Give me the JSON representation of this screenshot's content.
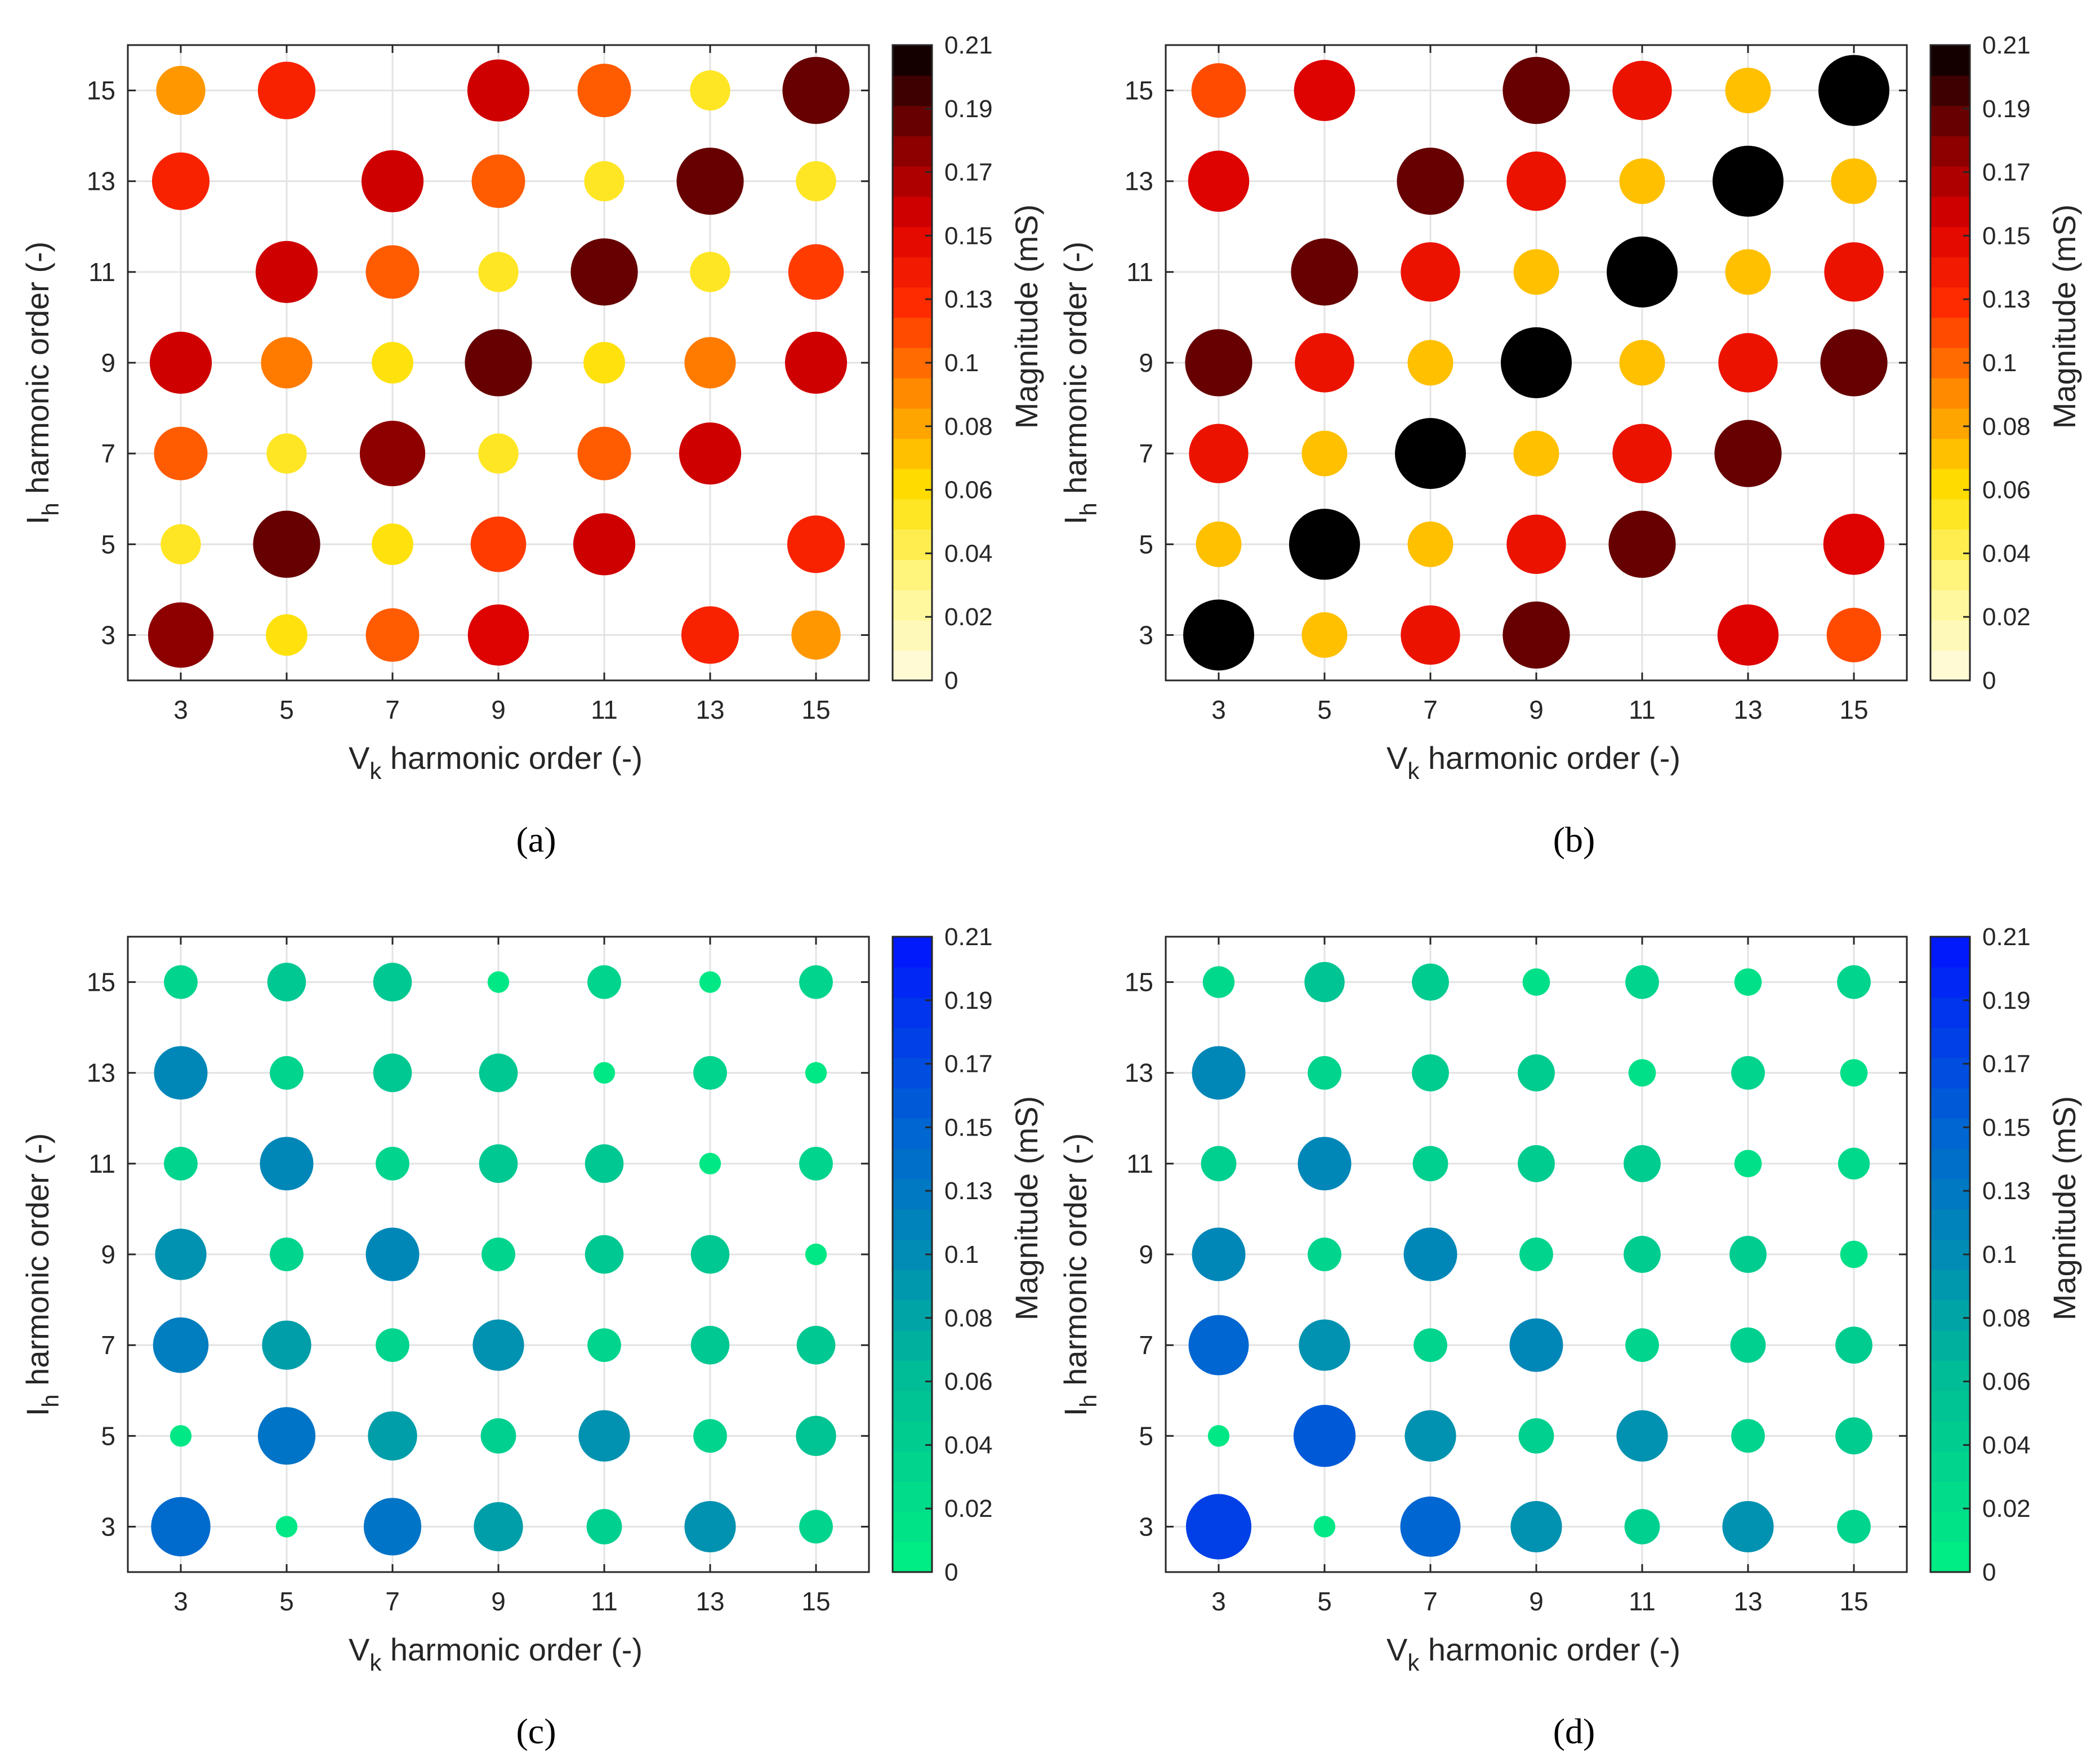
{
  "chart_data": [
    {
      "type": "scatter",
      "panel": "a",
      "caption": "(a)",
      "colormap": "hot",
      "xlabel": {
        "main": "V",
        "sub": "k",
        "rest": " harmonic order (-)"
      },
      "ylabel": {
        "main": "I",
        "sub": "h",
        "rest": " harmonic order (-)"
      },
      "x_ticks": [
        3,
        5,
        7,
        9,
        11,
        13,
        15
      ],
      "y_ticks": [
        3,
        5,
        7,
        9,
        11,
        13,
        15
      ],
      "xlim": [
        2,
        16
      ],
      "ylim": [
        2,
        16
      ],
      "colorbar": {
        "label": "Magnitude (mS)",
        "range": [
          0,
          0.21
        ],
        "ticks": [
          "0",
          "0.02",
          "0.04",
          "0.06",
          "0.08",
          "0.1",
          "0.13",
          "0.15",
          "0.17",
          "0.19",
          "0.21"
        ]
      },
      "rows_y": [
        3,
        5,
        7,
        9,
        11,
        13,
        15
      ],
      "columns_x": [
        3,
        5,
        7,
        9,
        11,
        13,
        15
      ],
      "values": [
        [
          0.175,
          0.06,
          0.11,
          0.15,
          null,
          0.13,
          0.09
        ],
        [
          0.055,
          0.185,
          0.06,
          0.12,
          0.155,
          null,
          0.13
        ],
        [
          0.11,
          0.055,
          0.175,
          0.055,
          0.11,
          0.155,
          null
        ],
        [
          0.155,
          0.1,
          0.06,
          0.185,
          0.06,
          0.1,
          0.155
        ],
        [
          null,
          0.155,
          0.11,
          0.055,
          0.185,
          0.055,
          0.12
        ],
        [
          0.13,
          null,
          0.155,
          0.11,
          0.055,
          0.185,
          0.055
        ],
        [
          0.09,
          0.13,
          null,
          0.155,
          0.11,
          0.055,
          0.185
        ]
      ]
    },
    {
      "type": "scatter",
      "panel": "b",
      "caption": "(b)",
      "colormap": "hot",
      "xlabel": {
        "main": "V",
        "sub": "k",
        "rest": " harmonic order (-)"
      },
      "ylabel": {
        "main": "I",
        "sub": "h",
        "rest": " harmonic order (-)"
      },
      "x_ticks": [
        3,
        5,
        7,
        9,
        11,
        13,
        15
      ],
      "y_ticks": [
        3,
        5,
        7,
        9,
        11,
        13,
        15
      ],
      "xlim": [
        2,
        16
      ],
      "ylim": [
        2,
        16
      ],
      "colorbar": {
        "label": "Magnitude (mS)",
        "range": [
          0,
          0.21
        ],
        "ticks": [
          "0",
          "0.02",
          "0.04",
          "0.06",
          "0.08",
          "0.1",
          "0.13",
          "0.15",
          "0.17",
          "0.19",
          "0.21"
        ]
      },
      "rows_y": [
        3,
        5,
        7,
        9,
        11,
        13,
        15
      ],
      "columns_x": [
        3,
        5,
        7,
        9,
        11,
        13,
        15
      ],
      "values": [
        [
          0.21,
          0.075,
          0.14,
          0.185,
          null,
          0.15,
          0.115
        ],
        [
          0.075,
          0.21,
          0.075,
          0.14,
          0.185,
          null,
          0.15
        ],
        [
          0.14,
          0.075,
          0.21,
          0.075,
          0.14,
          0.185,
          null
        ],
        [
          0.185,
          0.14,
          0.075,
          0.21,
          0.075,
          0.14,
          0.185
        ],
        [
          null,
          0.185,
          0.14,
          0.075,
          0.21,
          0.075,
          0.14
        ],
        [
          0.15,
          null,
          0.185,
          0.14,
          0.075,
          0.21,
          0.075
        ],
        [
          0.115,
          0.15,
          null,
          0.185,
          0.14,
          0.075,
          0.21
        ]
      ]
    },
    {
      "type": "scatter",
      "panel": "c",
      "caption": "(c)",
      "colormap": "winter",
      "xlabel": {
        "main": "V",
        "sub": "k",
        "rest": " harmonic order (-)"
      },
      "ylabel": {
        "main": "I",
        "sub": "h",
        "rest": " harmonic order (-)"
      },
      "x_ticks": [
        3,
        5,
        7,
        9,
        11,
        13,
        15
      ],
      "y_ticks": [
        3,
        5,
        7,
        9,
        11,
        13,
        15
      ],
      "xlim": [
        2,
        16
      ],
      "ylim": [
        2,
        16
      ],
      "colorbar": {
        "label": "Magnitude (mS)",
        "range": [
          0,
          0.21
        ],
        "ticks": [
          "0",
          "0.02",
          "0.04",
          "0.06",
          "0.08",
          "0.1",
          "0.13",
          "0.15",
          "0.17",
          "0.19",
          "0.21"
        ]
      },
      "rows_y": [
        3,
        5,
        7,
        9,
        11,
        13,
        15
      ],
      "columns_x": [
        3,
        5,
        7,
        9,
        11,
        13,
        15
      ],
      "values": [
        [
          0.14,
          0.01,
          0.13,
          0.09,
          0.04,
          0.1,
          0.035
        ],
        [
          0.01,
          0.13,
          0.09,
          0.04,
          0.1,
          0.035,
          0.055
        ],
        [
          0.12,
          0.09,
          0.035,
          0.1,
          0.035,
          0.05,
          0.05
        ],
        [
          0.1,
          0.035,
          0.11,
          0.035,
          0.05,
          0.05,
          0.01
        ],
        [
          0.035,
          0.11,
          0.035,
          0.05,
          0.05,
          0.01,
          0.035
        ],
        [
          0.11,
          0.035,
          0.05,
          0.05,
          0.01,
          0.035,
          0.01
        ],
        [
          0.035,
          0.05,
          0.05,
          0.01,
          0.035,
          0.01,
          0.035
        ]
      ]
    },
    {
      "type": "scatter",
      "panel": "d",
      "caption": "(d)",
      "colormap": "winter",
      "xlabel": {
        "main": "V",
        "sub": "k",
        "rest": " harmonic order (-)"
      },
      "ylabel": {
        "main": "I",
        "sub": "h",
        "rest": " harmonic order (-)"
      },
      "x_ticks": [
        3,
        5,
        7,
        9,
        11,
        13,
        15
      ],
      "y_ticks": [
        3,
        5,
        7,
        9,
        11,
        13,
        15
      ],
      "xlim": [
        2,
        16
      ],
      "ylim": [
        2,
        16
      ],
      "colorbar": {
        "label": "Magnitude (mS)",
        "range": [
          0,
          0.21
        ],
        "ticks": [
          "0",
          "0.02",
          "0.04",
          "0.06",
          "0.08",
          "0.1",
          "0.13",
          "0.15",
          "0.17",
          "0.19",
          "0.21"
        ]
      },
      "rows_y": [
        3,
        5,
        7,
        9,
        11,
        13,
        15
      ],
      "columns_x": [
        3,
        5,
        7,
        9,
        11,
        13,
        15
      ],
      "values": [
        [
          0.175,
          0.01,
          0.145,
          0.1,
          0.04,
          0.1,
          0.035
        ],
        [
          0.01,
          0.155,
          0.1,
          0.04,
          0.1,
          0.035,
          0.045
        ],
        [
          0.145,
          0.1,
          0.035,
          0.11,
          0.035,
          0.04,
          0.045
        ],
        [
          0.11,
          0.035,
          0.11,
          0.035,
          0.045,
          0.045,
          0.02
        ],
        [
          0.04,
          0.11,
          0.04,
          0.045,
          0.045,
          0.02,
          0.03
        ],
        [
          0.11,
          0.035,
          0.045,
          0.045,
          0.02,
          0.035,
          0.02
        ],
        [
          0.03,
          0.055,
          0.045,
          0.02,
          0.035,
          0.02,
          0.035
        ]
      ]
    }
  ]
}
